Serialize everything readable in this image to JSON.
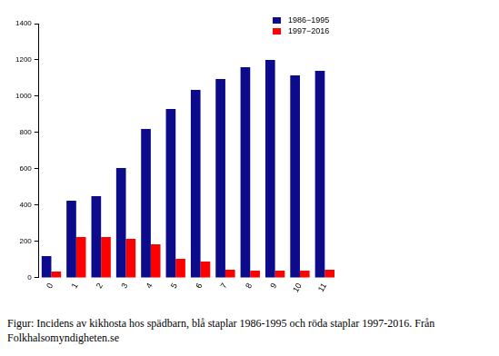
{
  "chart_data": {
    "type": "bar",
    "categories": [
      "0",
      "1",
      "2",
      "3",
      "4",
      "5",
      "6",
      "7",
      "8",
      "9",
      "10",
      "11"
    ],
    "series": [
      {
        "name": "1986−1995",
        "color": "#0b0b8c",
        "values": [
          120,
          425,
          450,
          605,
          820,
          930,
          1035,
          1095,
          1160,
          1200,
          1115,
          1140
        ]
      },
      {
        "name": "1997−2016",
        "color": "#ff0000",
        "values": [
          35,
          225,
          225,
          215,
          185,
          105,
          90,
          45,
          40,
          40,
          40,
          45
        ]
      }
    ],
    "ylim": [
      0,
      1400
    ],
    "yticks": [
      0,
      200,
      400,
      600,
      800,
      1000,
      1200,
      1400
    ],
    "grid": false,
    "legend": "top-right",
    "caption": "Figur: Incidens av kikhosta hos spädbarn, blå staplar 1986-1995 och röda staplar 1997-2016. Från Folkhalsomyndigheten.se"
  }
}
